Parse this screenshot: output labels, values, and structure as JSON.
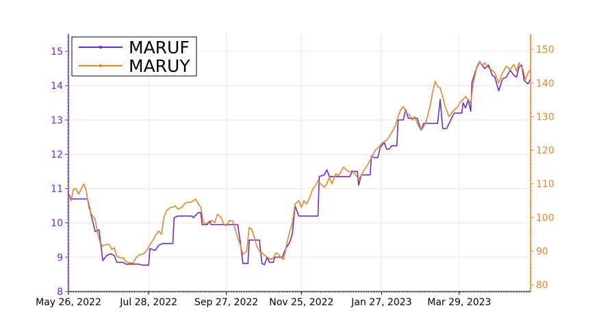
{
  "chart_data": {
    "type": "line",
    "title": "",
    "xlabel": "",
    "x_tick_labels": [
      "May 26, 2022",
      "Jul 28, 2022",
      "Sep 27, 2022",
      "Nov 25, 2022",
      "Jan 27, 2023",
      "Mar 29, 2023"
    ],
    "x_range": [
      "2022-05-26",
      "2023-05-24"
    ],
    "grid": true,
    "legend": {
      "position": "top-left",
      "entries": [
        "MARUF",
        "MARUY"
      ]
    },
    "y_left": {
      "label": "",
      "range": [
        8,
        15.5
      ],
      "ticks": [
        "8",
        "9",
        "10",
        "11",
        "12",
        "13",
        "14",
        "15"
      ],
      "color": "#6a2ad0"
    },
    "y_right": {
      "label": "",
      "range": [
        78,
        154.5
      ],
      "ticks": [
        "80",
        "90",
        "100",
        "110",
        "120",
        "130",
        "140",
        "150"
      ],
      "color": "#e8832a"
    },
    "series": [
      {
        "name": "MARUF",
        "axis": "left",
        "color": "#6a2ad0",
        "points": [
          [
            "2022-05-26",
            10.85
          ],
          [
            "2022-05-28",
            10.7
          ],
          [
            "2022-06-10",
            10.7
          ],
          [
            "2022-06-13",
            10.2
          ],
          [
            "2022-06-16",
            9.75
          ],
          [
            "2022-06-19",
            9.8
          ],
          [
            "2022-06-22",
            8.9
          ],
          [
            "2022-06-25",
            9.05
          ],
          [
            "2022-06-28",
            9.1
          ],
          [
            "2022-07-01",
            9.05
          ],
          [
            "2022-07-03",
            8.85
          ],
          [
            "2022-07-08",
            8.85
          ],
          [
            "2022-07-10",
            8.8
          ],
          [
            "2022-07-20",
            8.8
          ],
          [
            "2022-07-23",
            8.77
          ],
          [
            "2022-07-28",
            8.77
          ],
          [
            "2022-07-29",
            9.25
          ],
          [
            "2022-08-02",
            9.2
          ],
          [
            "2022-08-05",
            9.35
          ],
          [
            "2022-08-08",
            9.4
          ],
          [
            "2022-08-16",
            9.4
          ],
          [
            "2022-08-17",
            10.15
          ],
          [
            "2022-08-20",
            10.2
          ],
          [
            "2022-08-31",
            10.2
          ],
          [
            "2022-09-01",
            10.15
          ],
          [
            "2022-09-05",
            10.3
          ],
          [
            "2022-09-07",
            10.3
          ],
          [
            "2022-09-08",
            9.95
          ],
          [
            "2022-09-12",
            9.95
          ],
          [
            "2022-09-14",
            10.05
          ],
          [
            "2022-09-15",
            9.95
          ],
          [
            "2022-10-06",
            9.95
          ],
          [
            "2022-10-08",
            9.45
          ],
          [
            "2022-10-10",
            8.82
          ],
          [
            "2022-10-14",
            8.82
          ],
          [
            "2022-10-15",
            9.5
          ],
          [
            "2022-10-23",
            9.5
          ],
          [
            "2022-10-25",
            8.82
          ],
          [
            "2022-10-27",
            8.78
          ],
          [
            "2022-10-29",
            9.0
          ],
          [
            "2022-10-31",
            8.85
          ],
          [
            "2022-11-03",
            8.85
          ],
          [
            "2022-11-04",
            9.0
          ],
          [
            "2022-11-10",
            9.0
          ],
          [
            "2022-11-12",
            9.2
          ],
          [
            "2022-11-16",
            9.45
          ],
          [
            "2022-11-18",
            9.7
          ],
          [
            "2022-11-20",
            10.5
          ],
          [
            "2022-11-23",
            10.2
          ],
          [
            "2022-12-08",
            10.2
          ],
          [
            "2022-12-09",
            11.35
          ],
          [
            "2022-12-13",
            11.4
          ],
          [
            "2022-12-15",
            11.55
          ],
          [
            "2022-12-17",
            11.35
          ],
          [
            "2023-01-02",
            11.35
          ],
          [
            "2023-01-04",
            11.5
          ],
          [
            "2023-01-08",
            11.5
          ],
          [
            "2023-01-09",
            11.1
          ],
          [
            "2023-01-11",
            11.4
          ],
          [
            "2023-01-18",
            11.4
          ],
          [
            "2023-01-19",
            11.95
          ],
          [
            "2023-01-21",
            11.9
          ],
          [
            "2023-01-24",
            11.9
          ],
          [
            "2023-01-26",
            12.2
          ],
          [
            "2023-01-29",
            12.35
          ],
          [
            "2023-01-31",
            12.15
          ],
          [
            "2023-02-02",
            12.15
          ],
          [
            "2023-02-04",
            12.25
          ],
          [
            "2023-02-08",
            12.25
          ],
          [
            "2023-02-09",
            13.0
          ],
          [
            "2023-02-13",
            13.0
          ],
          [
            "2023-02-15",
            13.3
          ],
          [
            "2023-02-17",
            13.05
          ],
          [
            "2023-02-24",
            13.05
          ],
          [
            "2023-02-27",
            12.7
          ],
          [
            "2023-03-01",
            12.9
          ],
          [
            "2023-03-12",
            12.9
          ],
          [
            "2023-03-14",
            13.6
          ],
          [
            "2023-03-16",
            12.75
          ],
          [
            "2023-03-19",
            12.75
          ],
          [
            "2023-03-21",
            12.9
          ],
          [
            "2023-03-25",
            13.2
          ],
          [
            "2023-03-31",
            13.2
          ],
          [
            "2023-04-01",
            13.5
          ],
          [
            "2023-04-03",
            13.35
          ],
          [
            "2023-04-05",
            13.6
          ],
          [
            "2023-04-07",
            13.25
          ],
          [
            "2023-04-08",
            14.1
          ],
          [
            "2023-04-11",
            14.45
          ],
          [
            "2023-04-14",
            14.7
          ],
          [
            "2023-04-18",
            14.5
          ],
          [
            "2023-04-21",
            14.6
          ],
          [
            "2023-04-24",
            14.3
          ],
          [
            "2023-04-26",
            14.25
          ],
          [
            "2023-04-29",
            13.85
          ],
          [
            "2023-05-02",
            14.2
          ],
          [
            "2023-05-05",
            14.25
          ],
          [
            "2023-05-08",
            14.45
          ],
          [
            "2023-05-11",
            14.3
          ],
          [
            "2023-05-13",
            14.25
          ],
          [
            "2023-05-15",
            14.55
          ],
          [
            "2023-05-17",
            14.6
          ],
          [
            "2023-05-19",
            14.15
          ],
          [
            "2023-05-22",
            14.05
          ],
          [
            "2023-05-24",
            14.2
          ]
        ]
      },
      {
        "name": "MARUY",
        "axis": "right",
        "color": "#e8832a",
        "points": [
          [
            "2022-05-26",
            107
          ],
          [
            "2022-05-28",
            105
          ],
          [
            "2022-05-30",
            108.5
          ],
          [
            "2022-06-01",
            108.5
          ],
          [
            "2022-06-03",
            107
          ],
          [
            "2022-06-05",
            108.5
          ],
          [
            "2022-06-07",
            110
          ],
          [
            "2022-06-09",
            108
          ],
          [
            "2022-06-11",
            103
          ],
          [
            "2022-06-13",
            101
          ],
          [
            "2022-06-16",
            99.5
          ],
          [
            "2022-06-18",
            95
          ],
          [
            "2022-06-20",
            92.5
          ],
          [
            "2022-06-22",
            91.5
          ],
          [
            "2022-06-25",
            92
          ],
          [
            "2022-06-27",
            92
          ],
          [
            "2022-06-29",
            90.5
          ],
          [
            "2022-07-01",
            91
          ],
          [
            "2022-07-03",
            88.5
          ],
          [
            "2022-07-06",
            88
          ],
          [
            "2022-07-08",
            88
          ],
          [
            "2022-07-10",
            87
          ],
          [
            "2022-07-13",
            86.5
          ],
          [
            "2022-07-16",
            86.5
          ],
          [
            "2022-07-18",
            88
          ],
          [
            "2022-07-21",
            89
          ],
          [
            "2022-07-23",
            89
          ],
          [
            "2022-07-25",
            89.5
          ],
          [
            "2022-07-27",
            90.5
          ],
          [
            "2022-07-29",
            92
          ],
          [
            "2022-07-31",
            93
          ],
          [
            "2022-08-03",
            95
          ],
          [
            "2022-08-05",
            96
          ],
          [
            "2022-08-07",
            95
          ],
          [
            "2022-08-09",
            100
          ],
          [
            "2022-08-11",
            102
          ],
          [
            "2022-08-14",
            103
          ],
          [
            "2022-08-16",
            103
          ],
          [
            "2022-08-18",
            103.5
          ],
          [
            "2022-08-20",
            102.5
          ],
          [
            "2022-08-23",
            103
          ],
          [
            "2022-08-25",
            104
          ],
          [
            "2022-08-27",
            104.5
          ],
          [
            "2022-08-30",
            104.5
          ],
          [
            "2022-09-01",
            105
          ],
          [
            "2022-09-03",
            105.5
          ],
          [
            "2022-09-05",
            104
          ],
          [
            "2022-09-07",
            103
          ],
          [
            "2022-09-09",
            98.5
          ],
          [
            "2022-09-11",
            98
          ],
          [
            "2022-09-14",
            99
          ],
          [
            "2022-09-16",
            99
          ],
          [
            "2022-09-18",
            98.5
          ],
          [
            "2022-09-20",
            101
          ],
          [
            "2022-09-23",
            100
          ],
          [
            "2022-09-25",
            98
          ],
          [
            "2022-09-27",
            97.5
          ],
          [
            "2022-09-29",
            99
          ],
          [
            "2022-10-02",
            99
          ],
          [
            "2022-10-04",
            96.5
          ],
          [
            "2022-10-06",
            94
          ],
          [
            "2022-10-08",
            92
          ],
          [
            "2022-10-10",
            89
          ],
          [
            "2022-10-13",
            90
          ],
          [
            "2022-10-15",
            97
          ],
          [
            "2022-10-17",
            96.5
          ],
          [
            "2022-10-19",
            94
          ],
          [
            "2022-10-21",
            91.5
          ],
          [
            "2022-10-23",
            90
          ],
          [
            "2022-10-25",
            89.5
          ],
          [
            "2022-10-28",
            88.5
          ],
          [
            "2022-10-30",
            88
          ],
          [
            "2022-11-01",
            87.5
          ],
          [
            "2022-11-03",
            88
          ],
          [
            "2022-11-05",
            89.5
          ],
          [
            "2022-11-07",
            89
          ],
          [
            "2022-11-09",
            88
          ],
          [
            "2022-11-11",
            87.5
          ],
          [
            "2022-11-14",
            93
          ],
          [
            "2022-11-16",
            96
          ],
          [
            "2022-11-18",
            98.5
          ],
          [
            "2022-11-20",
            104
          ],
          [
            "2022-11-23",
            105
          ],
          [
            "2022-11-25",
            103
          ],
          [
            "2022-11-27",
            105
          ],
          [
            "2022-11-29",
            104
          ],
          [
            "2022-12-01",
            105.5
          ],
          [
            "2022-12-04",
            108.5
          ],
          [
            "2022-12-06",
            109.5
          ],
          [
            "2022-12-08",
            111
          ],
          [
            "2022-12-10",
            110
          ],
          [
            "2022-12-13",
            109
          ],
          [
            "2022-12-15",
            110
          ],
          [
            "2022-12-17",
            112
          ],
          [
            "2022-12-19",
            110
          ],
          [
            "2022-12-22",
            113
          ],
          [
            "2022-12-24",
            112.5
          ],
          [
            "2022-12-26",
            113.5
          ],
          [
            "2022-12-28",
            115
          ],
          [
            "2022-12-31",
            114
          ],
          [
            "2023-01-02",
            113.5
          ],
          [
            "2023-01-04",
            114
          ],
          [
            "2023-01-06",
            113
          ],
          [
            "2023-01-09",
            111.5
          ],
          [
            "2023-01-11",
            112.5
          ],
          [
            "2023-01-13",
            114
          ],
          [
            "2023-01-15",
            115
          ],
          [
            "2023-01-18",
            117
          ],
          [
            "2023-01-20",
            118.5
          ],
          [
            "2023-01-22",
            120
          ],
          [
            "2023-01-25",
            121
          ],
          [
            "2023-01-27",
            122
          ],
          [
            "2023-01-29",
            122.5
          ],
          [
            "2023-01-31",
            123
          ],
          [
            "2023-02-02",
            124
          ],
          [
            "2023-02-05",
            126
          ],
          [
            "2023-02-07",
            127.5
          ],
          [
            "2023-02-09",
            130
          ],
          [
            "2023-02-11",
            132
          ],
          [
            "2023-02-13",
            133
          ],
          [
            "2023-02-16",
            131
          ],
          [
            "2023-02-18",
            130.5
          ],
          [
            "2023-02-20",
            129
          ],
          [
            "2023-02-22",
            130
          ],
          [
            "2023-02-24",
            128
          ],
          [
            "2023-02-27",
            126
          ],
          [
            "2023-03-01",
            127
          ],
          [
            "2023-03-03",
            128.5
          ],
          [
            "2023-03-06",
            133
          ],
          [
            "2023-03-08",
            137
          ],
          [
            "2023-03-10",
            140.5
          ],
          [
            "2023-03-12",
            139
          ],
          [
            "2023-03-14",
            138.5
          ],
          [
            "2023-03-16",
            136
          ],
          [
            "2023-03-18",
            133
          ],
          [
            "2023-03-21",
            130
          ],
          [
            "2023-03-23",
            131
          ],
          [
            "2023-03-25",
            132
          ],
          [
            "2023-03-28",
            133
          ],
          [
            "2023-03-30",
            134.5
          ],
          [
            "2023-04-01",
            135
          ],
          [
            "2023-04-03",
            136
          ],
          [
            "2023-04-05",
            135
          ],
          [
            "2023-04-07",
            134
          ],
          [
            "2023-04-09",
            140
          ],
          [
            "2023-04-12",
            145
          ],
          [
            "2023-04-14",
            146.5
          ],
          [
            "2023-04-16",
            145
          ],
          [
            "2023-04-18",
            146
          ],
          [
            "2023-04-21",
            144.5
          ],
          [
            "2023-04-23",
            144
          ],
          [
            "2023-04-26",
            143
          ],
          [
            "2023-04-29",
            140
          ],
          [
            "2023-05-02",
            143
          ],
          [
            "2023-05-05",
            145
          ],
          [
            "2023-05-08",
            144
          ],
          [
            "2023-05-11",
            145.5
          ],
          [
            "2023-05-13",
            143.5
          ],
          [
            "2023-05-15",
            146
          ],
          [
            "2023-05-18",
            144
          ],
          [
            "2023-05-20",
            141
          ],
          [
            "2023-05-22",
            143
          ],
          [
            "2023-05-24",
            144
          ]
        ]
      }
    ]
  }
}
